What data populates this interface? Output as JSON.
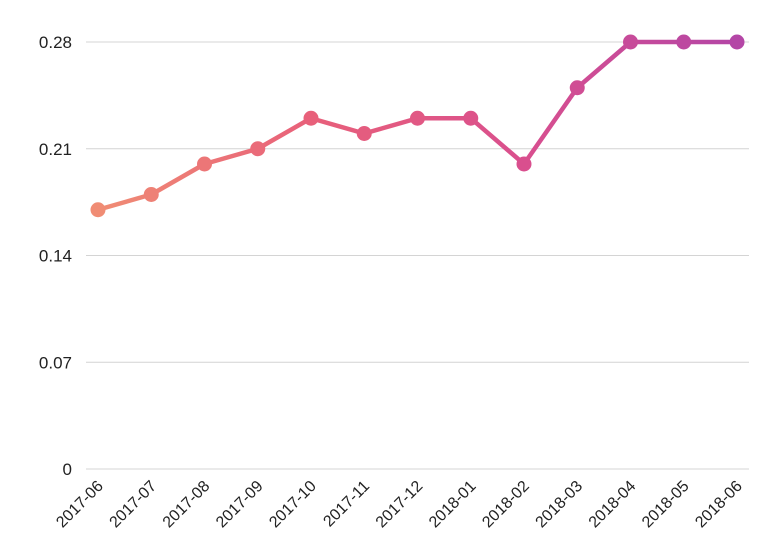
{
  "chart_data": {
    "type": "line",
    "title": "",
    "xlabel": "",
    "ylabel": "",
    "x": [
      "2017-06",
      "2017-07",
      "2017-08",
      "2017-09",
      "2017-10",
      "2017-11",
      "2017-12",
      "2018-01",
      "2018-02",
      "2018-03",
      "2018-04",
      "2018-05",
      "2018-06"
    ],
    "series": [
      {
        "values": [
          0.17,
          0.18,
          0.2,
          0.21,
          0.23,
          0.22,
          0.23,
          0.23,
          0.2,
          0.25,
          0.28,
          0.28,
          0.28
        ]
      }
    ],
    "ylim": [
      0,
      0.28
    ],
    "yticks": [
      "0",
      "0.07",
      "0.14",
      "0.21",
      "0.28"
    ],
    "grid": true,
    "legend": "none",
    "gradient_colors": [
      "#f08c74",
      "#e8607a",
      "#d94f8e",
      "#b446a6"
    ]
  }
}
